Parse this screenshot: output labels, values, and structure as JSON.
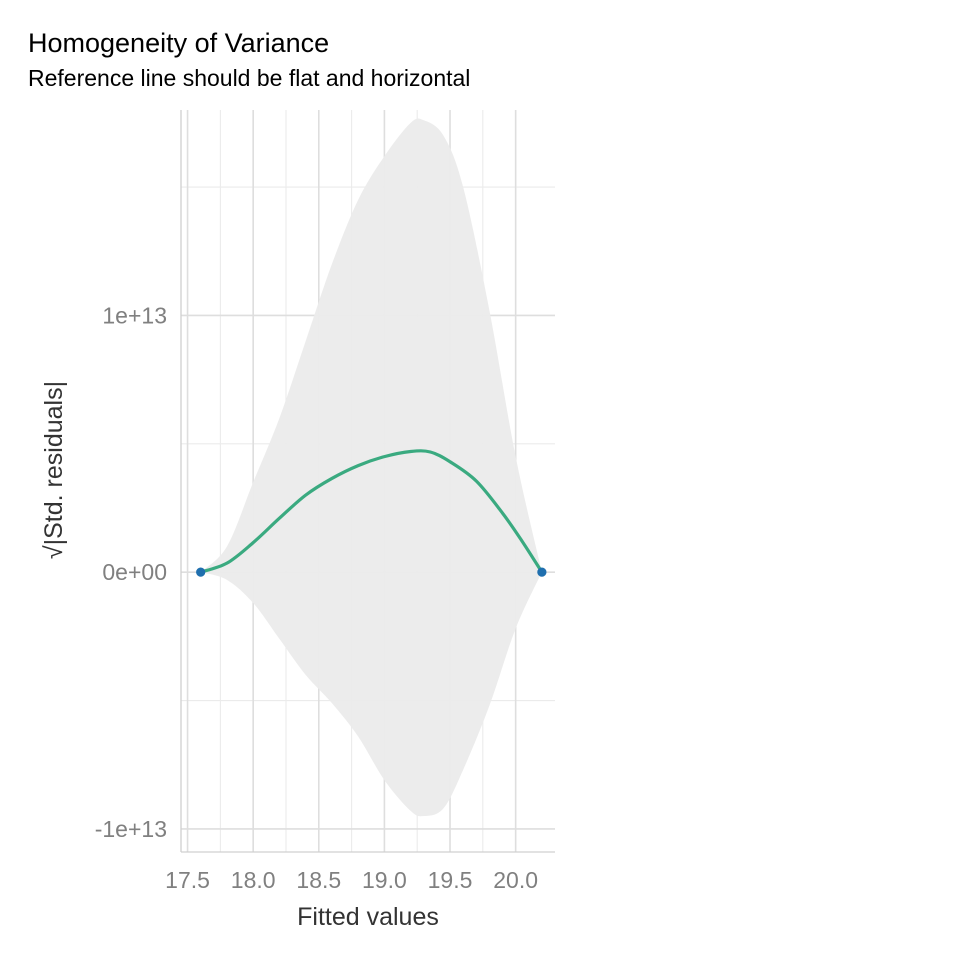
{
  "chart_data": {
    "type": "line",
    "title": "Homogeneity of Variance",
    "subtitle": "Reference line should be flat and horizontal",
    "xlabel": "Fitted values",
    "ylabel_radical": "√",
    "ylabel": "|Std. residuals|",
    "xlim": [
      17.45,
      20.3
    ],
    "ylim": [
      -10900000000000.0,
      18000000000000.0
    ],
    "x_ticks": [
      17.5,
      18.0,
      18.5,
      19.0,
      19.5,
      20.0
    ],
    "x_tick_labels": [
      "17.5",
      "18.0",
      "18.5",
      "19.0",
      "19.5",
      "20.0"
    ],
    "y_ticks": [
      -10000000000000.0,
      0,
      10000000000000.0
    ],
    "y_tick_labels": [
      "-1e+13",
      "0e+00",
      "1e+13"
    ],
    "y_minor_ticks": [
      -5000000000000.0,
      5000000000000.0,
      15000000000000.0
    ],
    "grid": true,
    "points": [
      {
        "x": 17.6,
        "y": 0
      },
      {
        "x": 20.2,
        "y": 0
      }
    ],
    "smooth_line": {
      "x": [
        17.6,
        17.8,
        18.0,
        18.2,
        18.4,
        18.6,
        18.8,
        19.0,
        19.2,
        19.35,
        19.5,
        19.7,
        19.9,
        20.05,
        20.2
      ],
      "y": [
        0,
        350000000000.0,
        1150000000000.0,
        2100000000000.0,
        3000000000000.0,
        3650000000000.0,
        4150000000000.0,
        4500000000000.0,
        4700000000000.0,
        4680000000000.0,
        4300000000000.0,
        3550000000000.0,
        2300000000000.0,
        1200000000000.0,
        0
      ]
    },
    "confidence_band": {
      "x": [
        17.6,
        17.8,
        18.0,
        18.2,
        18.4,
        18.6,
        18.8,
        19.0,
        19.2,
        19.3,
        19.45,
        19.6,
        19.8,
        20.0,
        20.2
      ],
      "upper": [
        0,
        1000000000000.0,
        3500000000000.0,
        6000000000000.0,
        9000000000000.0,
        12000000000000.0,
        14500000000000.0,
        16200000000000.0,
        17500000000000.0,
        17600000000000.0,
        17000000000000.0,
        15000000000000.0,
        10200000000000.0,
        4500000000000.0,
        0
      ],
      "lower": [
        0,
        -300000000000.0,
        -1200000000000.0,
        -2600000000000.0,
        -4000000000000.0,
        -5100000000000.0,
        -6400000000000.0,
        -8100000000000.0,
        -9300000000000.0,
        -9500000000000.0,
        -9200000000000.0,
        -7700000000000.0,
        -5200000000000.0,
        -2200000000000.0,
        0
      ]
    },
    "colors": {
      "line": "#3aaa80",
      "points": "#1f6fae",
      "band": "#ebebeb"
    }
  }
}
